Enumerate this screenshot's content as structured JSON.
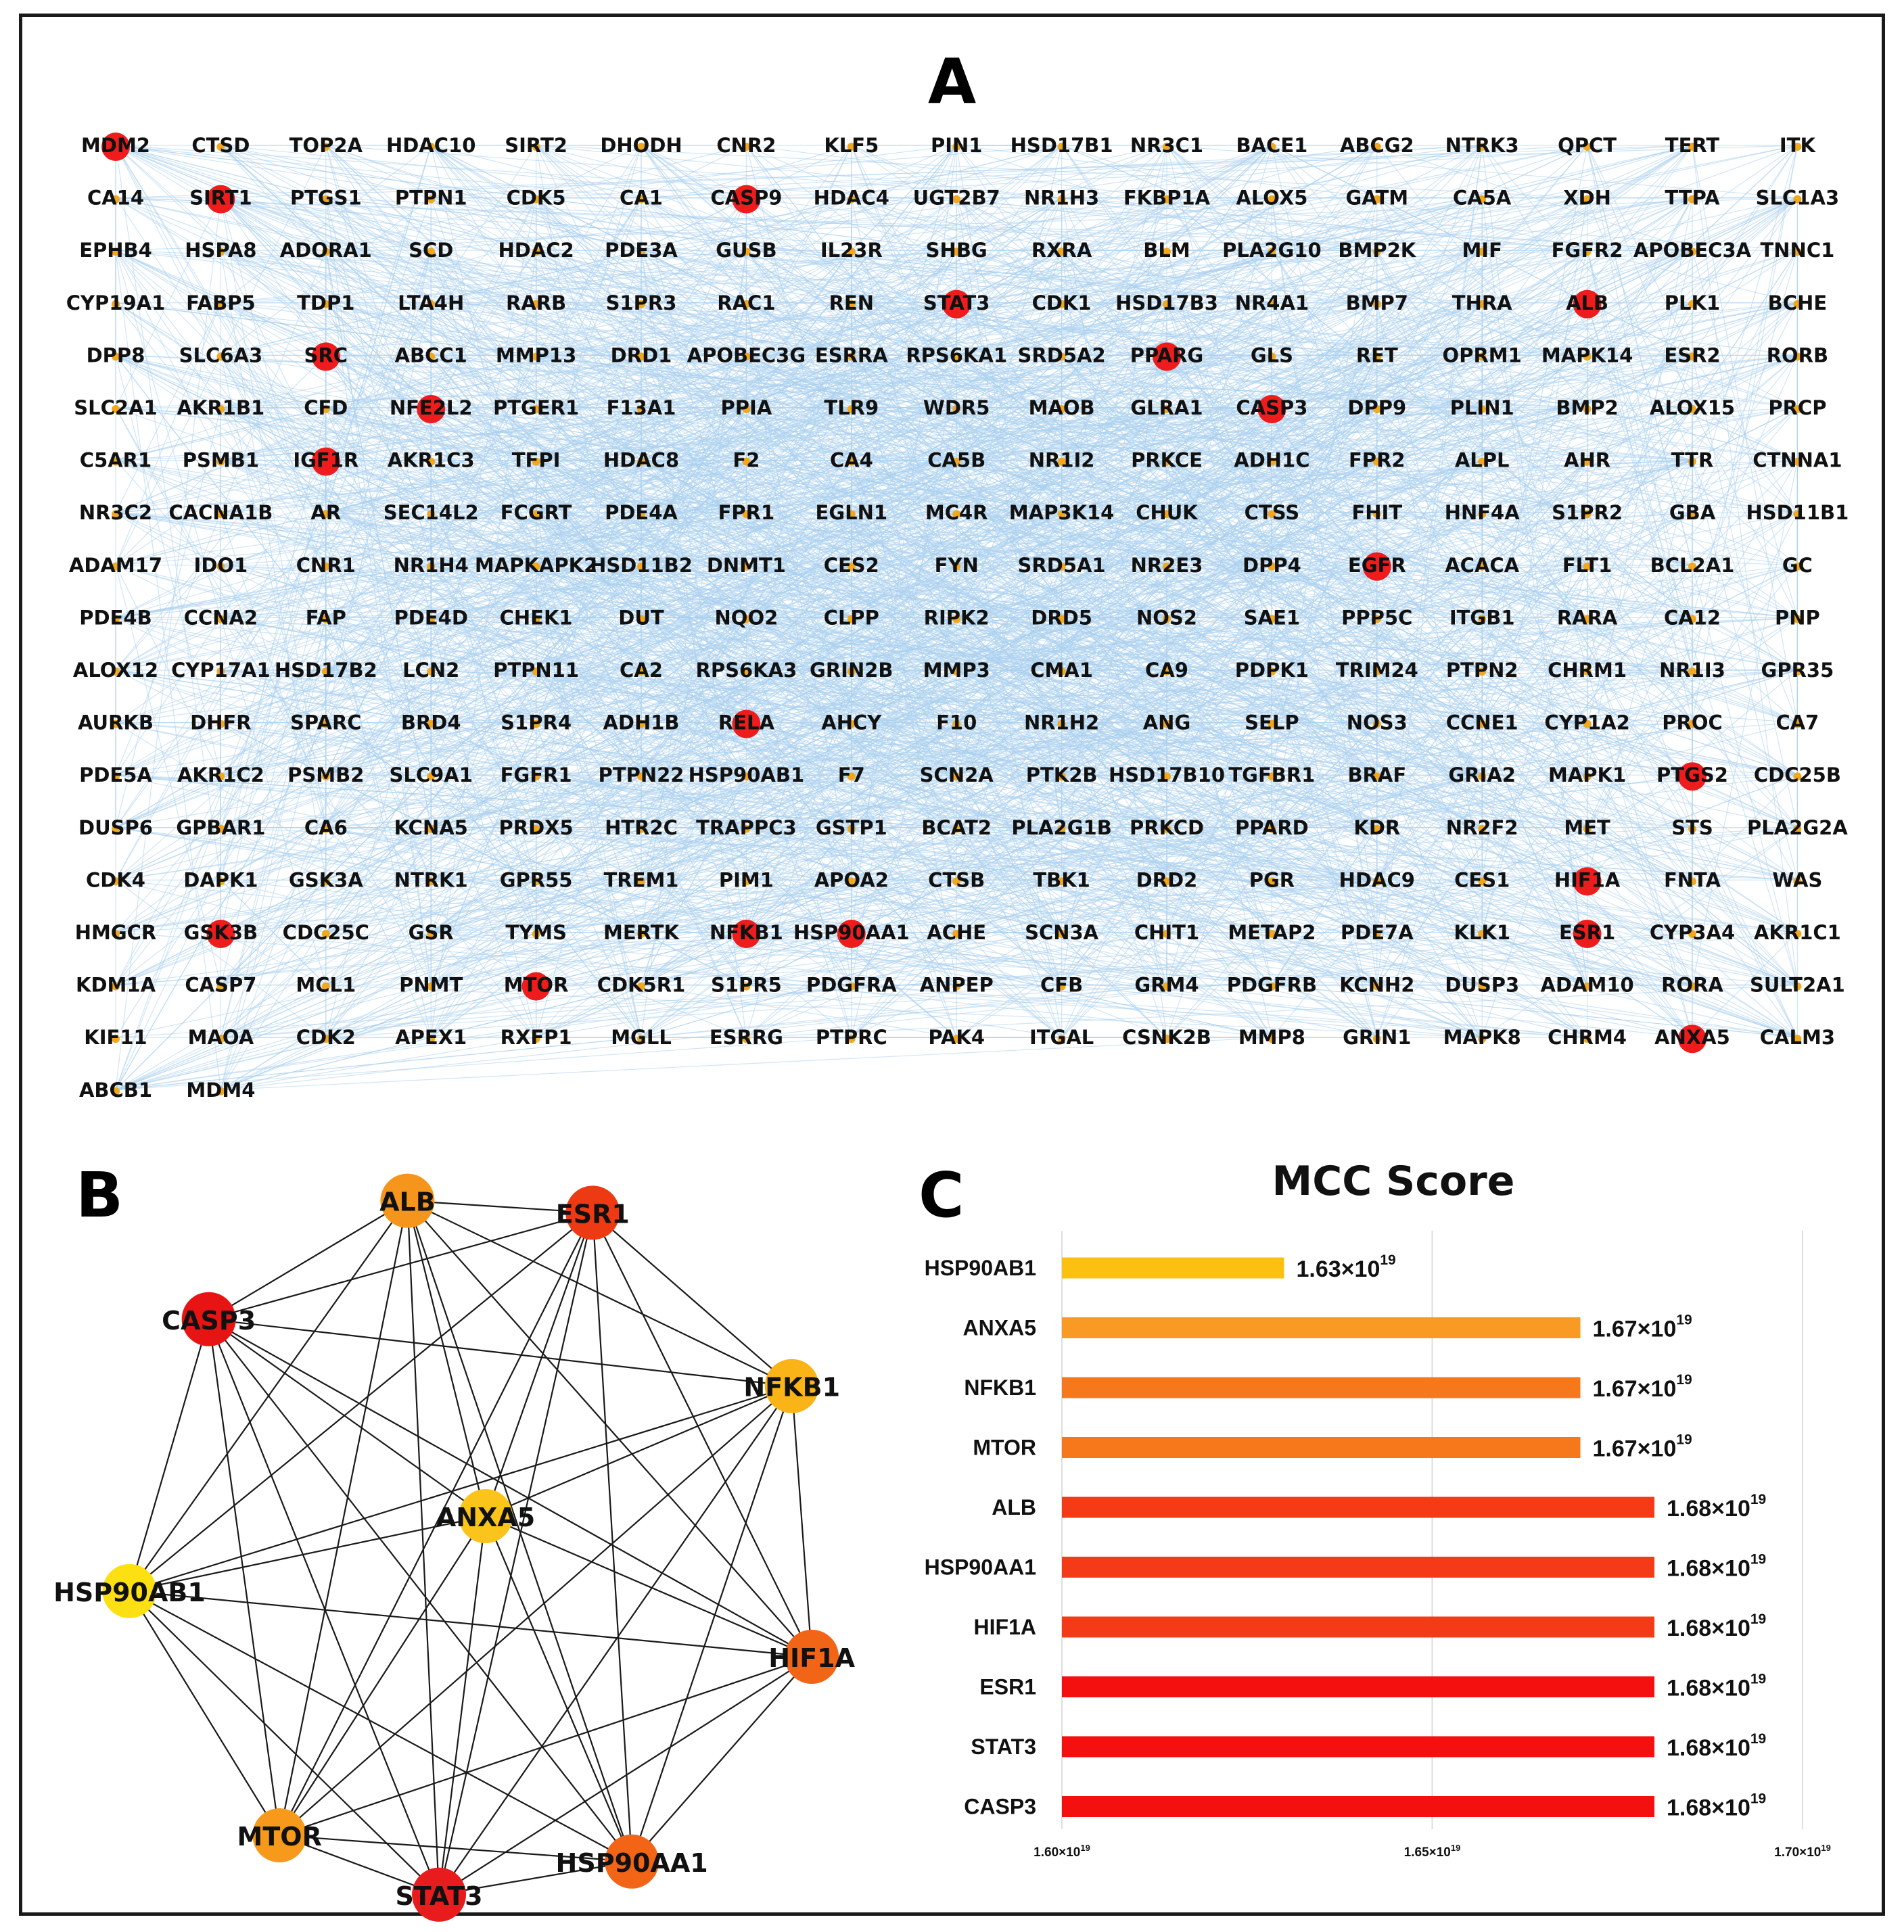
{
  "panels": {
    "a": "A",
    "b": "B",
    "c": "C"
  },
  "network": {
    "edge_color": "#a9d0ee",
    "hub_color": "#ee1c1c",
    "minor_dot_color": "#f2a81e",
    "hubs": [
      "MDM2",
      "SIRT1",
      "CASP9",
      "SRC",
      "NFE2L2",
      "IGF1R",
      "STAT3",
      "ALB",
      "PPARG",
      "CASP3",
      "EGFR",
      "RELA",
      "PTGS2",
      "GSK3B",
      "NFKB1",
      "HSP90AA1",
      "HIF1A",
      "ESR1",
      "MTOR",
      "ANXA5"
    ],
    "rows": [
      [
        "MDM2",
        "CTSD",
        "TOP2A",
        "HDAC10",
        "SIRT2",
        "DHODH",
        "CNR2",
        "KLF5",
        "PIN1",
        "HSD17B1",
        "NR3C1",
        "BACE1",
        "ABCG2",
        "NTRK3",
        "QPCT",
        "TERT",
        "ITK"
      ],
      [
        "CA14",
        "SIRT1",
        "PTGS1",
        "PTPN1",
        "CDK5",
        "CA1",
        "CASP9",
        "HDAC4",
        "UGT2B7",
        "NR1H3",
        "FKBP1A",
        "ALOX5",
        "GATM",
        "CA5A",
        "XDH",
        "TTPA",
        "SLC1A3"
      ],
      [
        "EPHB4",
        "HSPA8",
        "ADORA1",
        "SCD",
        "HDAC2",
        "PDE3A",
        "GUSB",
        "IL23R",
        "SHBG",
        "RXRA",
        "BLM",
        "PLA2G10",
        "BMP2K",
        "MIF",
        "FGFR2",
        "APOBEC3A",
        "TNNC1"
      ],
      [
        "CYP19A1",
        "FABP5",
        "TDP1",
        "LTA4H",
        "RARB",
        "S1PR3",
        "RAC1",
        "REN",
        "STAT3",
        "CDK1",
        "HSD17B3",
        "NR4A1",
        "BMP7",
        "THRA",
        "ALB",
        "PLK1",
        "BCHE"
      ],
      [
        "DPP8",
        "SLC6A3",
        "SRC",
        "ABCC1",
        "MMP13",
        "DRD1",
        "APOBEC3G",
        "ESRRA",
        "RPS6KA1",
        "SRD5A2",
        "PPARG",
        "GLS",
        "RET",
        "OPRM1",
        "MAPK14",
        "ESR2",
        "RORB"
      ],
      [
        "SLC2A1",
        "AKR1B1",
        "CFD",
        "NFE2L2",
        "PTGER1",
        "F13A1",
        "PPIA",
        "TLR9",
        "WDR5",
        "MAOB",
        "GLRA1",
        "CASP3",
        "DPP9",
        "PLIN1",
        "BMP2",
        "ALOX15",
        "PRCP"
      ],
      [
        "C5AR1",
        "PSMB1",
        "IGF1R",
        "AKR1C3",
        "TFPI",
        "HDAC8",
        "F2",
        "CA4",
        "CA5B",
        "NR1I2",
        "PRKCE",
        "ADH1C",
        "FPR2",
        "ALPL",
        "AHR",
        "TTR",
        "CTNNA1"
      ],
      [
        "NR3C2",
        "CACNA1B",
        "AR",
        "SEC14L2",
        "FCGRT",
        "PDE4A",
        "FPR1",
        "EGLN1",
        "MC4R",
        "MAP3K14",
        "CHUK",
        "CTSS",
        "FHIT",
        "HNF4A",
        "S1PR2",
        "GBA",
        "HSD11B1"
      ],
      [
        "ADAM17",
        "IDO1",
        "CNR1",
        "NR1H4",
        "MAPKAPK2",
        "HSD11B2",
        "DNMT1",
        "CES2",
        "FYN",
        "SRD5A1",
        "NR2E3",
        "DPP4",
        "EGFR",
        "ACACA",
        "FLT1",
        "BCL2A1",
        "GC"
      ],
      [
        "PDE4B",
        "CCNA2",
        "FAP",
        "PDE4D",
        "CHEK1",
        "DUT",
        "NQO2",
        "CLPP",
        "RIPK2",
        "DRD5",
        "NOS2",
        "SAE1",
        "PPP5C",
        "ITGB1",
        "RARA",
        "CA12",
        "PNP"
      ],
      [
        "ALOX12",
        "CYP17A1",
        "HSD17B2",
        "LCN2",
        "PTPN11",
        "CA2",
        "RPS6KA3",
        "GRIN2B",
        "MMP3",
        "CMA1",
        "CA9",
        "PDPK1",
        "TRIM24",
        "PTPN2",
        "CHRM1",
        "NR1I3",
        "GPR35"
      ],
      [
        "AURKB",
        "DHFR",
        "SPARC",
        "BRD4",
        "S1PR4",
        "ADH1B",
        "RELA",
        "AHCY",
        "F10",
        "NR1H2",
        "ANG",
        "SELP",
        "NOS3",
        "CCNE1",
        "CYP1A2",
        "PROC",
        "CA7"
      ],
      [
        "PDE5A",
        "AKR1C2",
        "PSMB2",
        "SLC9A1",
        "FGFR1",
        "PTPN22",
        "HSP90AB1",
        "F7",
        "SCN2A",
        "PTK2B",
        "HSD17B10",
        "TGFBR1",
        "BRAF",
        "GRIA2",
        "MAPK1",
        "PTGS2",
        "CDC25B"
      ],
      [
        "DUSP6",
        "GPBAR1",
        "CA6",
        "KCNA5",
        "PRDX5",
        "HTR2C",
        "TRAPPC3",
        "GSTP1",
        "BCAT2",
        "PLA2G1B",
        "PRKCD",
        "PPARD",
        "KDR",
        "NR2F2",
        "MET",
        "STS",
        "PLA2G2A"
      ],
      [
        "CDK4",
        "DAPK1",
        "GSK3A",
        "NTRK1",
        "GPR55",
        "TREM1",
        "PIM1",
        "APOA2",
        "CTSB",
        "TBK1",
        "DRD2",
        "PGR",
        "HDAC9",
        "CES1",
        "HIF1A",
        "FNTA",
        "WAS"
      ],
      [
        "HMGCR",
        "GSK3B",
        "CDC25C",
        "GSR",
        "TYMS",
        "MERTK",
        "NFKB1",
        "HSP90AA1",
        "ACHE",
        "SCN3A",
        "CHIT1",
        "METAP2",
        "PDE7A",
        "KLK1",
        "ESR1",
        "CYP3A4",
        "AKR1C1"
      ],
      [
        "KDM1A",
        "CASP7",
        "MCL1",
        "PNMT",
        "MTOR",
        "CDK5R1",
        "S1PR5",
        "PDGFRA",
        "ANPEP",
        "CFB",
        "GRM4",
        "PDGFRB",
        "KCNH2",
        "DUSP3",
        "ADAM10",
        "RORA",
        "SULT2A1"
      ],
      [
        "KIF11",
        "MAOA",
        "CDK2",
        "APEX1",
        "RXFP1",
        "MGLL",
        "ESRRG",
        "PTPRC",
        "PAK4",
        "ITGAL",
        "CSNK2B",
        "MMP8",
        "GRIN1",
        "MAPK8",
        "CHRM4",
        "ANXA5",
        "CALM3"
      ],
      [
        "ABCB1",
        "MDM4"
      ]
    ]
  },
  "ppi": {
    "nodes": [
      {
        "name": "ALB",
        "color": "#f5951c"
      },
      {
        "name": "ESR1",
        "color": "#ee3a12"
      },
      {
        "name": "NFKB1",
        "color": "#fbb417"
      },
      {
        "name": "HIF1A",
        "color": "#f26416"
      },
      {
        "name": "HSP90AA1",
        "color": "#f26416"
      },
      {
        "name": "STAT3",
        "color": "#e81c1c"
      },
      {
        "name": "MTOR",
        "color": "#f79a1c"
      },
      {
        "name": "HSP90AB1",
        "color": "#fce012"
      },
      {
        "name": "CASP3",
        "color": "#e81414"
      },
      {
        "name": "ANXA5",
        "color": "#fbc41a"
      }
    ],
    "edge_color": "#1a1a1a"
  },
  "chart_data": {
    "type": "bar",
    "orientation": "horizontal",
    "title": "MCC Score",
    "categories": [
      "HSP90AB1",
      "ANXA5",
      "NFKB1",
      "MTOR",
      "ALB",
      "HSP90AA1",
      "HIF1A",
      "ESR1",
      "STAT3",
      "CASP3"
    ],
    "values": [
      1.63e+19,
      1.67e+19,
      1.67e+19,
      1.67e+19,
      1.68e+19,
      1.68e+19,
      1.68e+19,
      1.68e+19,
      1.68e+19,
      1.68e+19
    ],
    "value_labels": [
      {
        "mantissa": "1.63×10",
        "exp": "19"
      },
      {
        "mantissa": "1.67×10",
        "exp": "19"
      },
      {
        "mantissa": "1.67×10",
        "exp": "19"
      },
      {
        "mantissa": "1.67×10",
        "exp": "19"
      },
      {
        "mantissa": "1.68×10",
        "exp": "19"
      },
      {
        "mantissa": "1.68×10",
        "exp": "19"
      },
      {
        "mantissa": "1.68×10",
        "exp": "19"
      },
      {
        "mantissa": "1.68×10",
        "exp": "19"
      },
      {
        "mantissa": "1.68×10",
        "exp": "19"
      },
      {
        "mantissa": "1.68×10",
        "exp": "19"
      }
    ],
    "colors": [
      "#fcc010",
      "#f99a25",
      "#f7781b",
      "#f7781b",
      "#f43a16",
      "#f43a16",
      "#f43a16",
      "#f51010",
      "#f51010",
      "#f51010"
    ],
    "xlim": [
      1.6e+19,
      1.7e+19
    ],
    "xticks": [
      1.6e+19,
      1.65e+19,
      1.7e+19
    ],
    "xtick_labels": [
      {
        "mantissa": "1.60×10",
        "exp": "19"
      },
      {
        "mantissa": "1.65×10",
        "exp": "19"
      },
      {
        "mantissa": "1.70×10",
        "exp": "19"
      }
    ],
    "grid": true,
    "xlabel": "",
    "ylabel": ""
  }
}
